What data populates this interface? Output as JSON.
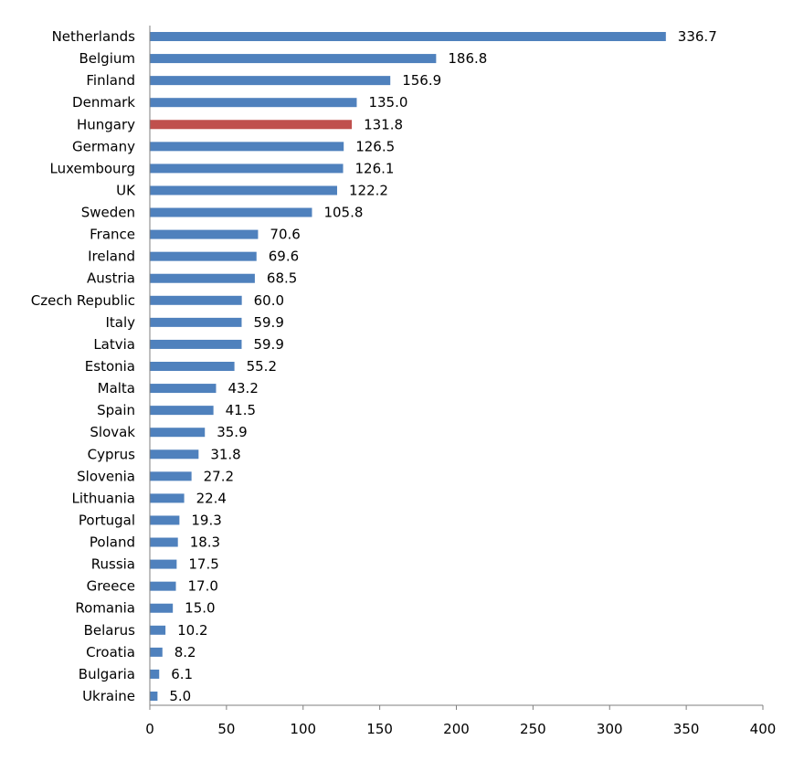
{
  "chart_data": {
    "type": "bar",
    "orientation": "horizontal",
    "categories": [
      "Netherlands",
      "Belgium",
      "Finland",
      "Denmark",
      "Hungary",
      "Germany",
      "Luxembourg",
      "UK",
      "Sweden",
      "France",
      "Ireland",
      "Austria",
      "Czech Republic",
      "Italy",
      "Latvia",
      "Estonia",
      "Malta",
      "Spain",
      "Slovak",
      "Cyprus",
      "Slovenia",
      "Lithuania",
      "Portugal",
      "Poland",
      "Russia",
      "Greece",
      "Romania",
      "Belarus",
      "Croatia",
      "Bulgaria",
      "Ukraine"
    ],
    "values": [
      336.7,
      186.8,
      156.9,
      135.0,
      131.8,
      126.5,
      126.1,
      122.2,
      105.8,
      70.6,
      69.6,
      68.5,
      60.0,
      59.9,
      59.9,
      55.2,
      43.2,
      41.5,
      35.9,
      31.8,
      27.2,
      22.4,
      19.3,
      18.3,
      17.5,
      17.0,
      15.0,
      10.2,
      8.2,
      6.1,
      5.0
    ],
    "value_labels": [
      "336.7",
      "186.8",
      "156.9",
      "135.0",
      "131.8",
      "126.5",
      "126.1",
      "122.2",
      "105.8",
      "70.6",
      "69.6",
      "68.5",
      "60.0",
      "59.9",
      "59.9",
      "55.2",
      "43.2",
      "41.5",
      "35.9",
      "31.8",
      "27.2",
      "22.4",
      "19.3",
      "18.3",
      "17.5",
      "17.0",
      "15.0",
      "10.2",
      "8.2",
      "6.1",
      "5.0"
    ],
    "highlight": "Hungary",
    "colors": {
      "default": "#4f81bd",
      "highlight": "#c0504d",
      "axis": "#7f7f7f"
    },
    "x_ticks": [
      0,
      50,
      100,
      150,
      200,
      250,
      300,
      350,
      400
    ],
    "xlim": [
      0,
      400
    ],
    "title": "",
    "xlabel": "",
    "ylabel": "",
    "grid": false,
    "legend": "none"
  }
}
